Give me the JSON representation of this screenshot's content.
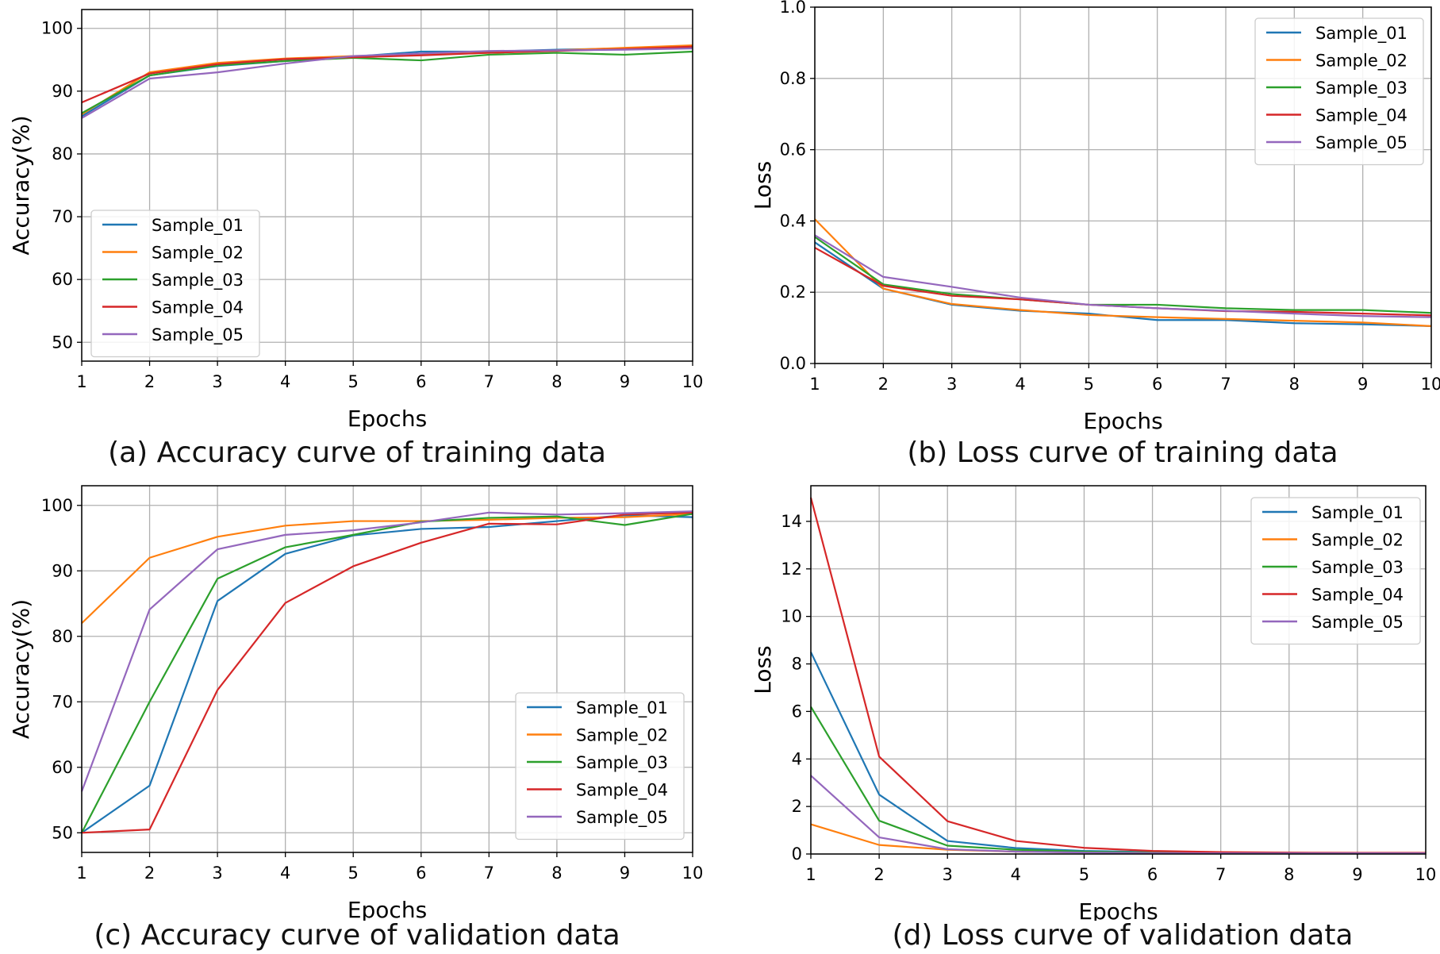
{
  "chart_data": [
    {
      "type": "line",
      "caption": "(a) Accuracy curve of training data",
      "xlabel": "Epochs",
      "ylabel": "Accuracy(%)",
      "x": [
        1,
        2,
        3,
        4,
        5,
        6,
        7,
        8,
        9,
        10
      ],
      "xlim": [
        1,
        10
      ],
      "ylim": [
        47,
        103
      ],
      "yticks": [
        50,
        60,
        70,
        80,
        90,
        100
      ],
      "grid": true,
      "legend_position": "center-left",
      "series": [
        {
          "name": "Sample_01",
          "color": "#1f77b4",
          "values": [
            86.0,
            92.5,
            94.0,
            94.8,
            95.5,
            96.3,
            96.3,
            96.6,
            96.8,
            97.0
          ]
        },
        {
          "name": "Sample_02",
          "color": "#ff7f0e",
          "values": [
            86.3,
            93.0,
            94.5,
            95.2,
            95.6,
            95.8,
            96.1,
            96.5,
            96.9,
            97.3
          ]
        },
        {
          "name": "Sample_03",
          "color": "#2ca02c",
          "values": [
            86.5,
            92.5,
            94.1,
            94.8,
            95.3,
            94.9,
            95.8,
            96.1,
            95.8,
            96.3
          ]
        },
        {
          "name": "Sample_04",
          "color": "#d62728",
          "values": [
            88.2,
            92.8,
            94.3,
            95.1,
            95.4,
            95.7,
            96.1,
            96.4,
            96.7,
            97.1
          ]
        },
        {
          "name": "Sample_05",
          "color": "#9467bd",
          "values": [
            85.7,
            92.0,
            93.0,
            94.4,
            95.6,
            96.0,
            96.4,
            96.5,
            96.6,
            96.8
          ]
        }
      ]
    },
    {
      "type": "line",
      "caption": "(b) Loss curve of training data",
      "xlabel": "Epochs",
      "ylabel": "Loss",
      "x": [
        1,
        2,
        3,
        4,
        5,
        6,
        7,
        8,
        9,
        10
      ],
      "xlim": [
        1,
        10
      ],
      "ylim": [
        0,
        1.0
      ],
      "yticks": [
        0.0,
        0.2,
        0.4,
        0.6,
        0.8,
        1.0
      ],
      "grid": true,
      "legend_position": "top-right",
      "series": [
        {
          "name": "Sample_01",
          "color": "#1f77b4",
          "values": [
            0.34,
            0.21,
            0.165,
            0.148,
            0.14,
            0.122,
            0.122,
            0.113,
            0.11,
            0.105
          ]
        },
        {
          "name": "Sample_02",
          "color": "#ff7f0e",
          "values": [
            0.405,
            0.21,
            0.167,
            0.15,
            0.136,
            0.13,
            0.125,
            0.12,
            0.115,
            0.105
          ]
        },
        {
          "name": "Sample_03",
          "color": "#2ca02c",
          "values": [
            0.355,
            0.222,
            0.195,
            0.18,
            0.165,
            0.165,
            0.155,
            0.15,
            0.15,
            0.142
          ]
        },
        {
          "name": "Sample_04",
          "color": "#d62728",
          "values": [
            0.325,
            0.218,
            0.19,
            0.18,
            0.165,
            0.155,
            0.147,
            0.145,
            0.14,
            0.135
          ]
        },
        {
          "name": "Sample_05",
          "color": "#9467bd",
          "values": [
            0.36,
            0.243,
            0.215,
            0.185,
            0.165,
            0.155,
            0.148,
            0.14,
            0.133,
            0.13
          ]
        }
      ]
    },
    {
      "type": "line",
      "caption": "(c) Accuracy curve of validation data",
      "xlabel": "Epochs",
      "ylabel": "Accuracy(%)",
      "x": [
        1,
        2,
        3,
        4,
        5,
        6,
        7,
        8,
        9,
        10
      ],
      "xlim": [
        1,
        10
      ],
      "ylim": [
        47,
        103
      ],
      "yticks": [
        50,
        60,
        70,
        80,
        90,
        100
      ],
      "grid": true,
      "legend_position": "lower-right",
      "series": [
        {
          "name": "Sample_01",
          "color": "#1f77b4",
          "values": [
            50.0,
            57.2,
            85.4,
            92.6,
            95.4,
            96.4,
            96.7,
            97.6,
            98.5,
            98.2
          ]
        },
        {
          "name": "Sample_02",
          "color": "#ff7f0e",
          "values": [
            82.0,
            92.0,
            95.2,
            96.9,
            97.6,
            97.6,
            97.8,
            98.1,
            98.2,
            98.7
          ]
        },
        {
          "name": "Sample_03",
          "color": "#2ca02c",
          "values": [
            50.0,
            70.0,
            88.8,
            93.6,
            95.5,
            97.5,
            98.1,
            98.3,
            97.0,
            98.7
          ]
        },
        {
          "name": "Sample_04",
          "color": "#d62728",
          "values": [
            50.0,
            50.5,
            71.8,
            85.1,
            90.7,
            94.3,
            97.2,
            97.1,
            98.6,
            98.9
          ]
        },
        {
          "name": "Sample_05",
          "color": "#9467bd",
          "values": [
            56.3,
            84.1,
            93.3,
            95.5,
            96.2,
            97.4,
            98.9,
            98.6,
            98.8,
            99.1
          ]
        }
      ]
    },
    {
      "type": "line",
      "caption": "(d) Loss curve of validation data",
      "xlabel": "Epochs",
      "ylabel": "Loss",
      "x": [
        1,
        2,
        3,
        4,
        5,
        6,
        7,
        8,
        9,
        10
      ],
      "xlim": [
        1,
        10
      ],
      "ylim": [
        0,
        15.5
      ],
      "yticks": [
        0,
        2,
        4,
        6,
        8,
        10,
        12,
        14
      ],
      "grid": true,
      "legend_position": "top-right",
      "series": [
        {
          "name": "Sample_01",
          "color": "#1f77b4",
          "values": [
            8.5,
            2.5,
            0.55,
            0.25,
            0.13,
            0.08,
            0.06,
            0.05,
            0.04,
            0.04
          ]
        },
        {
          "name": "Sample_02",
          "color": "#ff7f0e",
          "values": [
            1.25,
            0.38,
            0.18,
            0.1,
            0.07,
            0.05,
            0.04,
            0.04,
            0.03,
            0.03
          ]
        },
        {
          "name": "Sample_03",
          "color": "#2ca02c",
          "values": [
            6.2,
            1.4,
            0.35,
            0.18,
            0.1,
            0.06,
            0.05,
            0.04,
            0.04,
            0.03
          ]
        },
        {
          "name": "Sample_04",
          "color": "#d62728",
          "values": [
            15.0,
            4.1,
            1.38,
            0.55,
            0.26,
            0.13,
            0.08,
            0.06,
            0.05,
            0.05
          ]
        },
        {
          "name": "Sample_05",
          "color": "#9467bd",
          "values": [
            3.3,
            0.7,
            0.2,
            0.1,
            0.06,
            0.04,
            0.03,
            0.03,
            0.03,
            0.03
          ]
        }
      ]
    }
  ]
}
